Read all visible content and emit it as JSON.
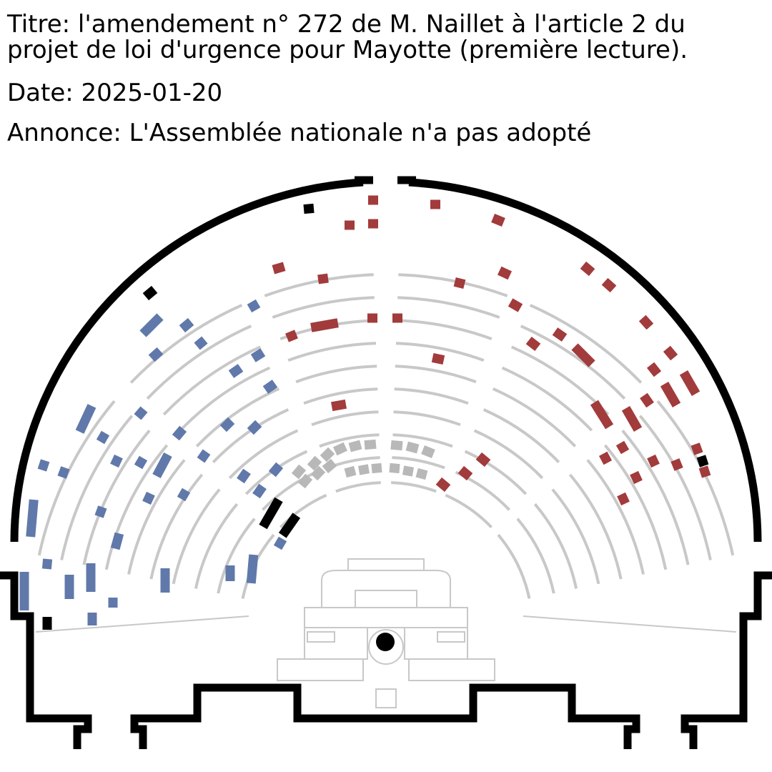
{
  "title_line1": "Titre: l'amendement n° 272 de M. Naillet à l'article 2 du",
  "title_line2": "projet de loi d'urgence pour Mayotte (première lecture).",
  "date": "Date: 2025-01-20",
  "announcement": "Annonce: L'Assemblée nationale n'a pas adopté",
  "colors": {
    "pour": "#a23b3b",
    "contre": "#6079aa",
    "abstention": "#000000",
    "government": "#b8b8b8",
    "empty": "#c8c8c8",
    "walls": "#000000"
  },
  "votes": {
    "pour": [
      [
        522,
        280,
        14,
        0
      ],
      [
        609,
        286,
        14,
        0
      ],
      [
        697,
        308,
        16,
        22
      ],
      [
        489,
        315,
        14,
        0
      ],
      [
        522,
        313,
        14,
        0
      ],
      [
        390,
        375,
        16,
        -16
      ],
      [
        706,
        382,
        16,
        25
      ],
      [
        822,
        376,
        16,
        40
      ],
      [
        852,
        399,
        16,
        42
      ],
      [
        452,
        390,
        14,
        -8
      ],
      [
        643,
        396,
        14,
        14
      ],
      [
        721,
        427,
        16,
        30
      ],
      [
        521,
        445,
        14,
        0
      ],
      [
        556,
        445,
        14,
        0
      ],
      [
        904,
        451,
        16,
        48
      ],
      [
        408,
        470,
        14,
        -22
      ],
      [
        454,
        455,
        38,
        -10
      ],
      [
        783,
        468,
        16,
        35
      ],
      [
        746,
        481,
        16,
        38
      ],
      [
        938,
        494,
        16,
        50
      ],
      [
        816,
        497,
        34,
        45
      ],
      [
        613,
        502,
        16,
        12
      ],
      [
        915,
        517,
        16,
        52
      ],
      [
        965,
        536,
        34,
        60
      ],
      [
        938,
        552,
        34,
        60
      ],
      [
        905,
        560,
        16,
        55
      ],
      [
        474,
        567,
        20,
        -10
      ],
      [
        842,
        580,
        40,
        58
      ],
      [
        884,
        586,
        34,
        60
      ],
      [
        871,
        626,
        14,
        60
      ],
      [
        847,
        641,
        14,
        62
      ],
      [
        914,
        645,
        14,
        65
      ],
      [
        947,
        650,
        14,
        68
      ],
      [
        975,
        628,
        14,
        70
      ],
      [
        986,
        660,
        14,
        72
      ],
      [
        676,
        643,
        16,
        40
      ],
      [
        651,
        662,
        16,
        40
      ],
      [
        620,
        678,
        16,
        40
      ],
      [
        890,
        668,
        14,
        65
      ],
      [
        872,
        698,
        14,
        65
      ]
    ],
    "contre": [
      [
        355,
        428,
        14,
        -30
      ],
      [
        212,
        455,
        34,
        -45
      ],
      [
        261,
        455,
        16,
        -40
      ],
      [
        281,
        480,
        14,
        -40
      ],
      [
        218,
        496,
        16,
        -42
      ],
      [
        361,
        497,
        16,
        -32
      ],
      [
        330,
        519,
        16,
        -35
      ],
      [
        378,
        541,
        16,
        -35
      ],
      [
        120,
        586,
        40,
        -65
      ],
      [
        197,
        578,
        14,
        -50
      ],
      [
        144,
        612,
        14,
        -60
      ],
      [
        251,
        606,
        16,
        -50
      ],
      [
        318,
        594,
        16,
        -45
      ],
      [
        356,
        598,
        16,
        -45
      ],
      [
        61,
        651,
        14,
        -72
      ],
      [
        89,
        661,
        14,
        -70
      ],
      [
        163,
        645,
        14,
        -65
      ],
      [
        197,
        647,
        14,
        -60
      ],
      [
        227,
        651,
        34,
        -62
      ],
      [
        285,
        638,
        14,
        -55
      ],
      [
        341,
        666,
        16,
        -55
      ],
      [
        386,
        657,
        16,
        -50
      ],
      [
        45,
        725,
        52,
        -85
      ],
      [
        208,
        697,
        14,
        -65
      ],
      [
        257,
        692,
        14,
        -60
      ],
      [
        363,
        687,
        16,
        -55
      ],
      [
        141,
        716,
        14,
        -70
      ],
      [
        164,
        757,
        22,
        -75
      ],
      [
        392,
        760,
        14,
        -60
      ],
      [
        66,
        789,
        14,
        -85
      ],
      [
        34,
        827,
        54,
        -90
      ],
      [
        97,
        821,
        34,
        -90
      ],
      [
        127,
        808,
        40,
        -90
      ],
      [
        158,
        843,
        14,
        -90
      ],
      [
        231,
        812,
        34,
        -90
      ],
      [
        322,
        802,
        22,
        -90
      ],
      [
        353,
        796,
        40,
        -85
      ],
      [
        129,
        866,
        18,
        -90
      ]
    ],
    "abstention": [
      [
        432,
        292,
        14,
        -5
      ],
      [
        210,
        410,
        16,
        -40
      ],
      [
        379,
        718,
        44,
        -60
      ],
      [
        405,
        735,
        34,
        -55
      ],
      [
        983,
        645,
        14,
        72
      ],
      [
        66,
        872,
        18,
        -90
      ],
      [
        539,
        898,
        0,
        0
      ]
    ],
    "government": [
      [
        418,
        660,
        16,
        -50
      ],
      [
        440,
        648,
        16,
        -48
      ],
      [
        458,
        636,
        16,
        -45
      ],
      [
        476,
        628,
        16,
        -25
      ],
      [
        497,
        624,
        16,
        -15
      ],
      [
        518,
        622,
        16,
        -5
      ],
      [
        555,
        623,
        16,
        5
      ],
      [
        577,
        626,
        16,
        15
      ],
      [
        599,
        632,
        16,
        22
      ],
      [
        427,
        673,
        16,
        -50
      ],
      [
        445,
        662,
        16,
        -46
      ],
      [
        461,
        652,
        16,
        -40
      ],
      [
        490,
        660,
        14,
        -15
      ],
      [
        509,
        657,
        14,
        -10
      ],
      [
        527,
        655,
        14,
        -5
      ],
      [
        552,
        655,
        14,
        5
      ],
      [
        571,
        659,
        14,
        10
      ],
      [
        590,
        663,
        14,
        15
      ]
    ]
  }
}
